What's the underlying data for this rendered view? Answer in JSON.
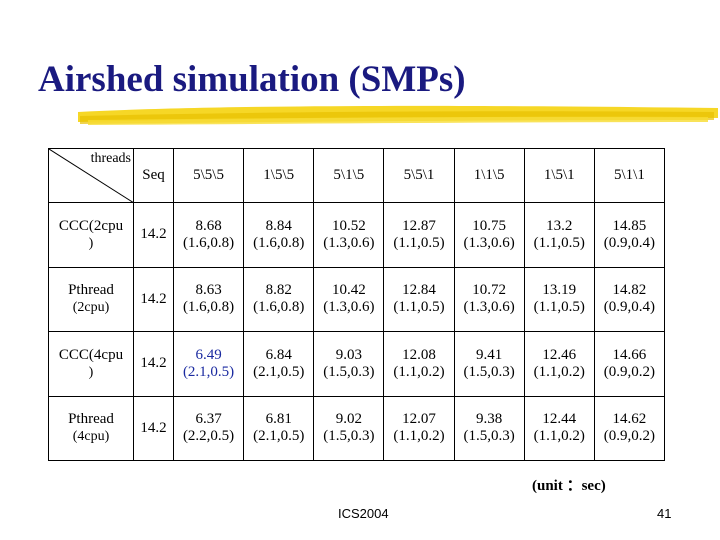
{
  "slide": {
    "title": "Airshed simulation (SMPs)",
    "unit_note": "(unit ：sec)",
    "footer": "ICS2004",
    "page_number": "41",
    "accent_color": "#1a1a80",
    "brush_color": "#f5d000"
  },
  "table": {
    "corner_label": "threads",
    "columns": [
      "Seq",
      "5\\5\\5",
      "1\\5\\5",
      "5\\1\\5",
      "5\\5\\1",
      "1\\1\\5",
      "1\\5\\1",
      "5\\1\\1"
    ],
    "rows": [
      {
        "label_line1": "CCC(2cpu",
        "label_line2": ")",
        "seq": "14.2",
        "cells": [
          {
            "value": "8.68",
            "pair": "(1.6,0.8)"
          },
          {
            "value": "8.84",
            "pair": "(1.6,0.8)"
          },
          {
            "value": "10.52",
            "pair": "(1.3,0.6)"
          },
          {
            "value": "12.87",
            "pair": "(1.1,0.5)"
          },
          {
            "value": "10.75",
            "pair": "(1.3,0.6)"
          },
          {
            "value": "13.2",
            "pair": "(1.1,0.5)"
          },
          {
            "value": "14.85",
            "pair": "(0.9,0.4)"
          }
        ]
      },
      {
        "label_line1": "Pthread",
        "label_line2": "(2cpu)",
        "seq": "14.2",
        "cells": [
          {
            "value": "8.63",
            "pair": "(1.6,0.8)"
          },
          {
            "value": "8.82",
            "pair": "(1.6,0.8)"
          },
          {
            "value": "10.42",
            "pair": "(1.3,0.6)"
          },
          {
            "value": "12.84",
            "pair": "(1.1,0.5)"
          },
          {
            "value": "10.72",
            "pair": "(1.3,0.6)"
          },
          {
            "value": "13.19",
            "pair": "(1.1,0.5)"
          },
          {
            "value": "14.82",
            "pair": "(0.9,0.4)"
          }
        ]
      },
      {
        "label_line1": "CCC(4cpu",
        "label_line2": ")",
        "seq": "14.2",
        "cells": [
          {
            "value": "6.49",
            "pair": "(2.1,0.5)"
          },
          {
            "value": "6.84",
            "pair": "(2.1,0.5)"
          },
          {
            "value": "9.03",
            "pair": "(1.5,0.3)"
          },
          {
            "value": "12.08",
            "pair": "(1.1,0.2)"
          },
          {
            "value": "9.41",
            "pair": "(1.5,0.3)"
          },
          {
            "value": "12.46",
            "pair": "(1.1,0.2)"
          },
          {
            "value": "14.66",
            "pair": "(0.9,0.2)"
          }
        ]
      },
      {
        "label_line1": "Pthread",
        "label_line2": "(4cpu)",
        "seq": "14.2",
        "cells": [
          {
            "value": "6.37",
            "pair": "(2.2,0.5)"
          },
          {
            "value": "6.81",
            "pair": "(2.1,0.5)"
          },
          {
            "value": "9.02",
            "pair": "(1.5,0.3)"
          },
          {
            "value": "12.07",
            "pair": "(1.1,0.2)"
          },
          {
            "value": "9.38",
            "pair": "(1.5,0.3)"
          },
          {
            "value": "12.44",
            "pair": "(1.1,0.2)"
          },
          {
            "value": "14.62",
            "pair": "(0.9,0.2)"
          }
        ]
      }
    ]
  }
}
